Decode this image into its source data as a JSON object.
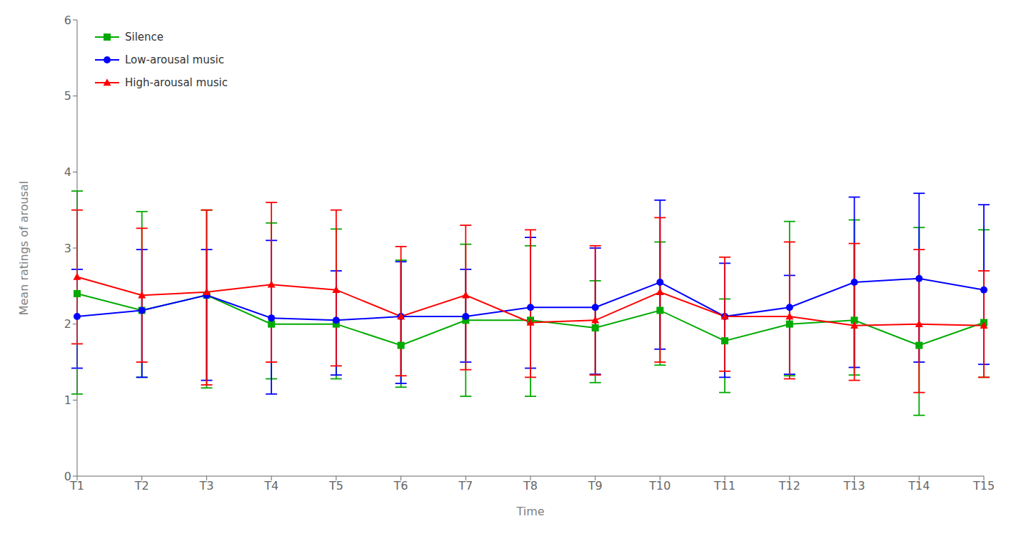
{
  "chart_data": {
    "type": "line",
    "categories": [
      "T1",
      "T2",
      "T3",
      "T4",
      "T5",
      "T6",
      "T7",
      "T8",
      "T9",
      "T10",
      "T11",
      "T12",
      "T13",
      "T14",
      "T15"
    ],
    "xlabel": "Time",
    "ylabel": "Mean ratings of arousal",
    "ylim": [
      0,
      6
    ],
    "yticks": [
      0,
      1,
      2,
      3,
      4,
      5,
      6
    ],
    "grid": false,
    "legend": "upper left",
    "series": [
      {
        "name": "Silence",
        "color": "#00aa00",
        "marker": "square",
        "values": [
          2.4,
          2.18,
          2.38,
          2.0,
          2.0,
          1.72,
          2.05,
          2.05,
          1.95,
          2.18,
          1.78,
          2.0,
          2.05,
          1.72,
          2.02
        ],
        "error_minus": [
          1.32,
          0.88,
          1.22,
          0.72,
          0.72,
          0.55,
          1.0,
          1.0,
          0.72,
          0.72,
          0.68,
          0.68,
          0.72,
          0.92,
          0.72
        ],
        "error_plus": [
          1.35,
          1.3,
          1.12,
          1.33,
          1.25,
          1.12,
          1.0,
          0.98,
          0.62,
          0.9,
          0.55,
          1.35,
          1.32,
          1.55,
          1.22
        ]
      },
      {
        "name": "Low-arousal music",
        "color": "#0000ff",
        "marker": "circle",
        "values": [
          2.1,
          2.18,
          2.38,
          2.08,
          2.05,
          2.1,
          2.1,
          2.22,
          2.22,
          2.55,
          2.1,
          2.22,
          2.55,
          2.6,
          2.45
        ],
        "error_minus": [
          0.68,
          0.88,
          1.12,
          1.0,
          0.72,
          0.88,
          0.6,
          0.8,
          0.88,
          0.88,
          0.8,
          0.88,
          1.12,
          1.1,
          0.98
        ],
        "error_plus": [
          0.62,
          0.8,
          0.6,
          1.02,
          0.65,
          0.72,
          0.62,
          0.92,
          0.78,
          1.08,
          0.7,
          0.42,
          1.12,
          1.12,
          1.12
        ]
      },
      {
        "name": "High-arousal music",
        "color": "#ff0000",
        "marker": "triangle",
        "values": [
          2.62,
          2.38,
          2.42,
          2.52,
          2.45,
          2.1,
          2.38,
          2.02,
          2.05,
          2.42,
          2.1,
          2.1,
          1.98,
          2.0,
          1.98
        ],
        "error_minus": [
          0.88,
          0.88,
          1.22,
          1.02,
          1.0,
          0.78,
          0.98,
          0.72,
          0.72,
          0.92,
          0.72,
          0.82,
          0.72,
          0.9,
          0.68
        ],
        "error_plus": [
          0.88,
          0.88,
          1.08,
          1.08,
          1.05,
          0.92,
          0.92,
          1.22,
          0.98,
          0.98,
          0.78,
          0.98,
          1.08,
          0.98,
          0.72
        ]
      }
    ]
  }
}
